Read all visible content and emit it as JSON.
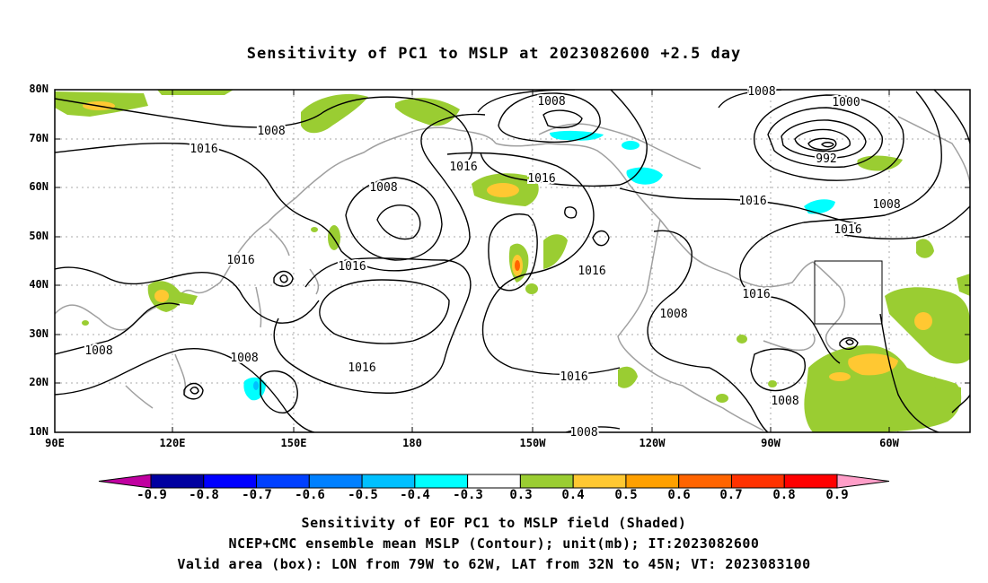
{
  "title": "Sensitivity of PC1 to MSLP at 2023082600 +2.5 day",
  "axes": {
    "lat_labels": [
      "80N",
      "70N",
      "60N",
      "50N",
      "40N",
      "30N",
      "20N",
      "10N"
    ],
    "lon_labels": [
      "90E",
      "120E",
      "150E",
      "180",
      "150W",
      "120W",
      "90W",
      "60W"
    ]
  },
  "contours": {
    "labels": [
      "1008",
      "1016",
      "1016",
      "1008",
      "1016",
      "1016",
      "1016",
      "1016",
      "1008",
      "1016",
      "1016",
      "1008",
      "1008",
      "1008",
      "1000",
      "992",
      "1016",
      "1008",
      "1016",
      "1016",
      "1008",
      "1008",
      "1016",
      "1008"
    ]
  },
  "colorbar": {
    "labels": [
      "-0.9",
      "-0.8",
      "-0.7",
      "-0.6",
      "-0.5",
      "-0.4",
      "-0.3",
      "0.3",
      "0.4",
      "0.5",
      "0.6",
      "0.7",
      "0.8",
      "0.9"
    ],
    "colors": [
      "#c000a0",
      "#0000a0",
      "#0000ff",
      "#0040ff",
      "#0080ff",
      "#00c0ff",
      "#00ffff",
      "#ffffff",
      "#9acd32",
      "#ffc832",
      "#ffa000",
      "#ff6400",
      "#ff3200",
      "#ff0000",
      "#ff9ec8"
    ]
  },
  "valid_box": {
    "lon_from": "79W",
    "lon_to": "62W",
    "lat_from": "32N",
    "lat_to": "45N"
  },
  "captions": {
    "line1": "Sensitivity of EOF PC1 to MSLP field (Shaded)",
    "line2": "NCEP+CMC ensemble mean MSLP (Contour); unit(mb); IT:2023082600",
    "line3": "Valid area (box): LON from 79W to 62W, LAT from 32N to 45N; VT: 2023083100"
  }
}
